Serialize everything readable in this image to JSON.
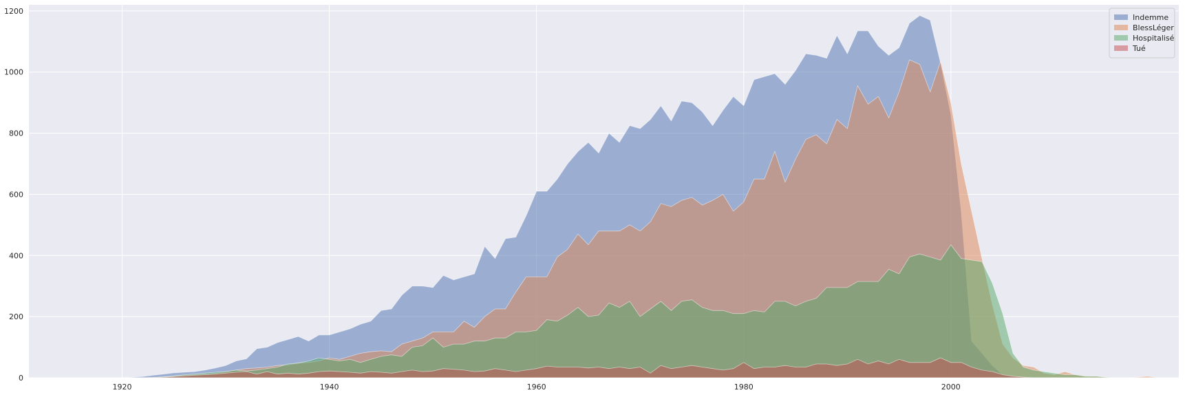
{
  "chart_data": {
    "type": "area",
    "stacked": false,
    "x_start": 1916,
    "xlim": [
      1911,
      2022
    ],
    "ylim": [
      0,
      1220
    ],
    "x_ticks": [
      1920,
      1940,
      1960,
      1980,
      2000
    ],
    "y_ticks": [
      0,
      200,
      400,
      600,
      800,
      1000,
      1200
    ],
    "title": "",
    "xlabel": "",
    "ylabel": "",
    "grid": true,
    "legend_position": "top-right",
    "series": [
      {
        "name": "Indemme",
        "color": "#4c72b0",
        "values": [
          0,
          0,
          0,
          0,
          0,
          2,
          4,
          8,
          12,
          16,
          18,
          20,
          25,
          32,
          40,
          55,
          62,
          95,
          100,
          115,
          125,
          135,
          120,
          140,
          140,
          150,
          160,
          175,
          185,
          220,
          225,
          270,
          300,
          300,
          295,
          335,
          320,
          330,
          340,
          430,
          390,
          455,
          460,
          530,
          610,
          610,
          650,
          700,
          740,
          770,
          735,
          800,
          770,
          825,
          815,
          845,
          890,
          840,
          905,
          900,
          870,
          825,
          875,
          920,
          890,
          975,
          985,
          995,
          960,
          1005,
          1060,
          1055,
          1045,
          1120,
          1060,
          1135,
          1135,
          1085,
          1055,
          1080,
          1160,
          1185,
          1170,
          1030,
          860,
          540,
          120,
          80,
          40,
          10,
          5,
          2,
          0,
          0,
          0,
          0,
          0,
          0,
          0,
          0,
          0,
          0,
          0,
          0,
          0,
          0
        ]
      },
      {
        "name": "BlessLéger",
        "color": "#dd8452",
        "values": [
          0,
          0,
          0,
          0,
          0,
          0,
          0,
          1,
          2,
          5,
          8,
          10,
          12,
          15,
          20,
          25,
          30,
          32,
          35,
          40,
          42,
          48,
          50,
          55,
          65,
          60,
          70,
          80,
          85,
          88,
          85,
          110,
          120,
          130,
          150,
          150,
          150,
          185,
          165,
          200,
          225,
          225,
          280,
          330,
          330,
          330,
          395,
          420,
          470,
          435,
          480,
          480,
          480,
          500,
          480,
          510,
          570,
          560,
          580,
          590,
          565,
          580,
          600,
          545,
          575,
          650,
          650,
          740,
          640,
          715,
          780,
          795,
          765,
          845,
          815,
          955,
          895,
          920,
          850,
          935,
          1040,
          1025,
          935,
          1035,
          900,
          700,
          545,
          390,
          240,
          110,
          65,
          40,
          35,
          15,
          10,
          20,
          10,
          5,
          5,
          2,
          0,
          0,
          2,
          5,
          0,
          0
        ]
      },
      {
        "name": "Hospitalisé",
        "color": "#55a868",
        "values": [
          0,
          0,
          0,
          0,
          0,
          0,
          0,
          1,
          3,
          6,
          10,
          12,
          15,
          18,
          20,
          25,
          22,
          25,
          30,
          35,
          45,
          48,
          55,
          65,
          60,
          55,
          60,
          50,
          60,
          70,
          75,
          70,
          100,
          105,
          130,
          100,
          110,
          110,
          120,
          120,
          130,
          130,
          150,
          150,
          155,
          190,
          185,
          205,
          230,
          200,
          205,
          245,
          230,
          250,
          200,
          225,
          250,
          220,
          250,
          255,
          230,
          220,
          220,
          210,
          210,
          220,
          215,
          250,
          250,
          235,
          250,
          260,
          295,
          295,
          295,
          315,
          315,
          315,
          355,
          340,
          395,
          405,
          395,
          385,
          435,
          390,
          385,
          380,
          310,
          210,
          80,
          35,
          25,
          20,
          15,
          10,
          10,
          5,
          5,
          2,
          0,
          0,
          0,
          0,
          0,
          0
        ]
      },
      {
        "name": "Tué",
        "color": "#c44e52",
        "values": [
          0,
          0,
          0,
          0,
          0,
          0,
          0,
          1,
          2,
          4,
          6,
          8,
          10,
          12,
          15,
          18,
          20,
          12,
          20,
          12,
          15,
          12,
          15,
          20,
          22,
          20,
          18,
          15,
          20,
          18,
          15,
          20,
          25,
          20,
          22,
          30,
          28,
          25,
          20,
          22,
          30,
          25,
          20,
          25,
          30,
          38,
          35,
          35,
          35,
          32,
          35,
          30,
          35,
          30,
          35,
          15,
          40,
          30,
          35,
          40,
          35,
          30,
          25,
          30,
          50,
          30,
          35,
          35,
          40,
          35,
          35,
          45,
          45,
          40,
          45,
          60,
          45,
          55,
          45,
          60,
          50,
          50,
          50,
          65,
          50,
          50,
          35,
          25,
          20,
          10,
          5,
          2,
          0,
          0,
          0,
          0,
          0,
          0,
          0,
          0,
          0,
          0,
          0,
          0,
          0,
          0
        ]
      }
    ]
  }
}
